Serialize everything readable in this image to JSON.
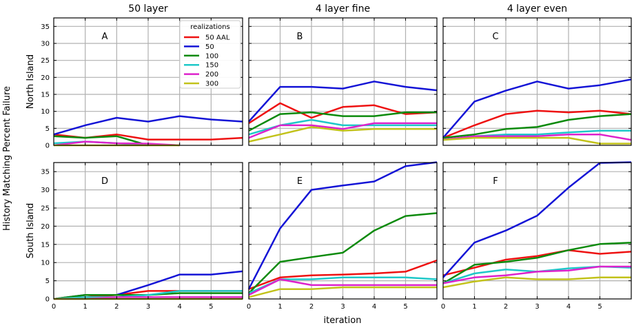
{
  "figure": {
    "ylabel": "History Matching Percent Failure",
    "xlabel": "iteration",
    "column_titles": [
      "50 layer",
      "4 layer fine",
      "4 layer even"
    ],
    "row_labels": [
      "North Island",
      "South Island"
    ],
    "legend": {
      "title": "realizations",
      "entries": [
        "50 AAL",
        "50",
        "100",
        "150",
        "200",
        "300"
      ]
    }
  },
  "chart_data": {
    "type": "line",
    "x_ticks": [
      0,
      1,
      2,
      3,
      4,
      5
    ],
    "y_ticks": [
      0,
      5,
      10,
      15,
      20,
      25,
      30,
      35
    ],
    "xlim": [
      0,
      6
    ],
    "ylim": [
      0,
      37.5
    ],
    "grid": true,
    "legend_placement": "top-right of panel A",
    "series_colors": {
      "50 AAL": "#ee1111",
      "50": "#1414d6",
      "100": "#0b8a0b",
      "150": "#1ec8c8",
      "200": "#dd22cc",
      "300": "#c2c21a"
    },
    "panels": [
      {
        "label": "A",
        "series": [
          {
            "name": "50 AAL",
            "x": [
              0,
              1,
              2,
              3,
              4,
              5,
              6
            ],
            "y": [
              3.2,
              2.2,
              3.2,
              1.7,
              1.7,
              1.7,
              2.2
            ]
          },
          {
            "name": "50",
            "x": [
              0,
              1,
              2,
              3,
              4,
              5,
              6
            ],
            "y": [
              3.2,
              5.9,
              8.1,
              7.0,
              8.6,
              7.6,
              7.0
            ]
          },
          {
            "name": "100",
            "x": [
              0,
              1,
              2,
              3
            ],
            "y": [
              2.7,
              2.2,
              2.7,
              0.0
            ]
          },
          {
            "name": "150",
            "x": [
              0,
              1,
              2,
              3
            ],
            "y": [
              0.6,
              1.1,
              0.6,
              0.0
            ]
          },
          {
            "name": "200",
            "x": [
              0,
              1,
              2,
              3,
              4
            ],
            "y": [
              0.0,
              1.1,
              0.6,
              0.5,
              0.0
            ]
          },
          {
            "name": "300",
            "x": [
              0,
              1,
              2,
              3,
              4
            ],
            "y": [
              0.0,
              0.0,
              0.0,
              0.0,
              0.0
            ]
          }
        ]
      },
      {
        "label": "B",
        "series": [
          {
            "name": "50 AAL",
            "x": [
              0,
              1,
              2,
              3,
              4,
              5,
              6
            ],
            "y": [
              6.5,
              12.4,
              8.1,
              11.3,
              11.8,
              9.2,
              9.7
            ]
          },
          {
            "name": "50",
            "x": [
              0,
              1,
              2,
              3,
              4,
              5,
              6
            ],
            "y": [
              7.0,
              17.2,
              17.2,
              16.7,
              18.8,
              17.2,
              16.2
            ]
          },
          {
            "name": "100",
            "x": [
              0,
              1,
              2,
              3,
              4,
              5,
              6
            ],
            "y": [
              4.3,
              9.2,
              9.7,
              8.6,
              8.6,
              9.7,
              9.7
            ]
          },
          {
            "name": "150",
            "x": [
              0,
              1,
              2,
              3,
              4,
              5,
              6
            ],
            "y": [
              3.2,
              5.9,
              7.5,
              5.9,
              5.9,
              5.9,
              5.9
            ]
          },
          {
            "name": "200",
            "x": [
              0,
              1,
              2,
              3,
              4,
              5,
              6
            ],
            "y": [
              2.2,
              5.9,
              5.9,
              4.8,
              6.5,
              6.5,
              6.5
            ]
          },
          {
            "name": "300",
            "x": [
              0,
              1,
              2,
              3,
              4,
              5,
              6
            ],
            "y": [
              1.1,
              3.2,
              5.4,
              4.3,
              4.8,
              4.8,
              4.8
            ]
          }
        ]
      },
      {
        "label": "C",
        "series": [
          {
            "name": "50 AAL",
            "x": [
              0,
              1,
              2,
              3,
              4,
              5,
              6
            ],
            "y": [
              2.2,
              5.9,
              9.2,
              10.2,
              9.7,
              10.2,
              9.2
            ]
          },
          {
            "name": "50",
            "x": [
              0,
              1,
              2,
              3,
              4,
              5,
              6
            ],
            "y": [
              2.2,
              12.9,
              16.1,
              18.8,
              16.7,
              17.7,
              19.4
            ]
          },
          {
            "name": "100",
            "x": [
              0,
              1,
              2,
              3,
              4,
              5,
              6
            ],
            "y": [
              2.2,
              3.2,
              4.8,
              5.4,
              7.5,
              8.6,
              9.2
            ]
          },
          {
            "name": "150",
            "x": [
              0,
              1,
              2,
              3,
              4,
              5,
              6
            ],
            "y": [
              1.7,
              2.7,
              3.2,
              3.2,
              3.8,
              4.3,
              4.3
            ]
          },
          {
            "name": "200",
            "x": [
              0,
              1,
              2,
              3,
              4,
              5,
              6
            ],
            "y": [
              1.7,
              2.7,
              2.7,
              2.7,
              3.2,
              3.2,
              1.6
            ]
          },
          {
            "name": "300",
            "x": [
              0,
              1,
              2,
              3,
              4,
              5,
              6
            ],
            "y": [
              1.6,
              2.2,
              2.2,
              2.2,
              2.2,
              0.5,
              0.5
            ]
          }
        ]
      },
      {
        "label": "D",
        "series": [
          {
            "name": "50 AAL",
            "x": [
              0,
              1,
              2,
              3,
              4,
              5,
              6
            ],
            "y": [
              0.0,
              0.5,
              1.1,
              2.2,
              2.2,
              2.2,
              2.2
            ]
          },
          {
            "name": "50",
            "x": [
              0,
              1,
              2,
              3,
              4,
              5,
              6
            ],
            "y": [
              0.0,
              1.1,
              1.1,
              3.8,
              6.7,
              6.7,
              7.6
            ]
          },
          {
            "name": "100",
            "x": [
              0,
              1,
              2,
              3,
              4,
              5,
              6
            ],
            "y": [
              0.0,
              1.1,
              1.1,
              1.1,
              1.6,
              1.6,
              1.6
            ]
          },
          {
            "name": "150",
            "x": [
              0,
              1,
              2,
              3,
              4,
              5,
              6
            ],
            "y": [
              0.0,
              0.5,
              0.5,
              1.1,
              2.2,
              2.2,
              2.2
            ]
          },
          {
            "name": "200",
            "x": [
              0,
              1,
              2,
              3,
              4,
              5,
              6
            ],
            "y": [
              0.0,
              0.0,
              0.5,
              0.5,
              0.5,
              0.5,
              0.5
            ]
          },
          {
            "name": "300",
            "x": [
              0,
              1,
              2,
              3,
              4,
              5,
              6
            ],
            "y": [
              0.0,
              0.0,
              0.0,
              0.0,
              0.0,
              0.0,
              0.0
            ]
          }
        ]
      },
      {
        "label": "E",
        "series": [
          {
            "name": "50 AAL",
            "x": [
              0,
              1,
              2,
              3,
              4,
              5,
              6
            ],
            "y": [
              2.7,
              5.9,
              6.5,
              6.7,
              7.0,
              7.5,
              10.6
            ]
          },
          {
            "name": "50",
            "x": [
              0,
              1,
              2,
              3,
              4,
              5,
              6
            ],
            "y": [
              2.7,
              19.4,
              30.0,
              31.2,
              32.3,
              36.5,
              37.6
            ]
          },
          {
            "name": "100",
            "x": [
              0,
              1,
              2,
              3,
              4,
              5,
              6
            ],
            "y": [
              1.6,
              10.2,
              11.5,
              12.7,
              18.8,
              22.8,
              23.6
            ]
          },
          {
            "name": "150",
            "x": [
              0,
              1,
              2,
              3,
              4,
              5,
              6
            ],
            "y": [
              1.6,
              5.4,
              5.4,
              5.9,
              5.9,
              5.9,
              5.4
            ]
          },
          {
            "name": "200",
            "x": [
              0,
              1,
              2,
              3,
              4,
              5,
              6
            ],
            "y": [
              1.1,
              5.4,
              3.8,
              3.8,
              3.8,
              3.8,
              3.8
            ]
          },
          {
            "name": "300",
            "x": [
              0,
              1,
              2,
              3,
              4,
              5,
              6
            ],
            "y": [
              0.5,
              2.7,
              2.7,
              3.2,
              3.2,
              3.2,
              3.2
            ]
          }
        ]
      },
      {
        "label": "F",
        "series": [
          {
            "name": "50 AAL",
            "x": [
              0,
              1,
              2,
              3,
              4,
              5,
              6
            ],
            "y": [
              6.5,
              8.6,
              10.8,
              11.8,
              13.4,
              12.4,
              13.0
            ]
          },
          {
            "name": "50",
            "x": [
              0,
              1,
              2,
              3,
              4,
              5,
              6
            ],
            "y": [
              5.9,
              15.5,
              18.8,
              22.9,
              30.6,
              37.4,
              37.6
            ]
          },
          {
            "name": "100",
            "x": [
              0,
              1,
              2,
              3,
              4,
              5,
              6
            ],
            "y": [
              4.3,
              9.4,
              10.2,
              11.3,
              13.4,
              15.1,
              15.5
            ]
          },
          {
            "name": "150",
            "x": [
              0,
              1,
              2,
              3,
              4,
              5,
              6
            ],
            "y": [
              4.3,
              7.0,
              8.1,
              7.5,
              8.4,
              8.9,
              8.6
            ]
          },
          {
            "name": "200",
            "x": [
              0,
              1,
              2,
              3,
              4,
              5,
              6
            ],
            "y": [
              4.3,
              5.9,
              6.5,
              7.5,
              7.8,
              8.9,
              8.9
            ]
          },
          {
            "name": "300",
            "x": [
              0,
              1,
              2,
              3,
              4,
              5,
              6
            ],
            "y": [
              3.2,
              4.8,
              5.9,
              5.4,
              5.4,
              5.9,
              5.9
            ]
          }
        ]
      }
    ]
  }
}
